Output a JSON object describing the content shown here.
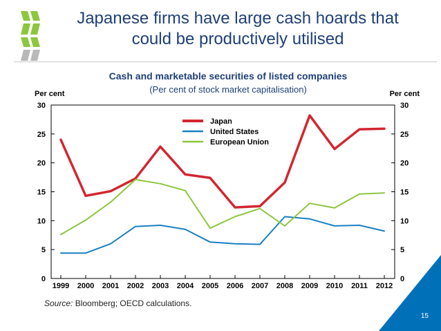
{
  "slide": {
    "title_line1": "Japanese firms have large cash hoards that",
    "title_line2": "could be productively utilised",
    "page_number": "15"
  },
  "source": {
    "label": "Source:",
    "text": "Bloomberg; OECD calculations."
  },
  "colors": {
    "title": "#1f3f76",
    "logo_green": "#8dc63f",
    "corner_blue": "#0071b9"
  },
  "chart_data": {
    "type": "line",
    "title": "Cash and marketable securities of listed companies",
    "subtitle": "(Per cent of stock market capitalisation)",
    "ylabel_left": "Per cent",
    "ylabel_right": "Per cent",
    "ylim": [
      0,
      30
    ],
    "yticks": [
      0,
      5,
      10,
      15,
      20,
      25,
      30
    ],
    "x": [
      "1999",
      "2000",
      "2001",
      "2002",
      "2003",
      "2004",
      "2005",
      "2006",
      "2007",
      "2008",
      "2009",
      "2010",
      "2011",
      "2012"
    ],
    "legend_position": "top-center",
    "grid": false,
    "series": [
      {
        "name": "Japan",
        "color": "#d22630",
        "width": 3.5,
        "values": [
          24.0,
          14.3,
          15.1,
          17.3,
          22.8,
          18.0,
          17.4,
          12.3,
          12.5,
          16.6,
          28.2,
          22.4,
          25.8,
          25.9
        ]
      },
      {
        "name": "United States",
        "color": "#1a7fc1",
        "width": 2,
        "values": [
          4.4,
          4.4,
          6.0,
          9.0,
          9.2,
          8.5,
          6.3,
          6.0,
          5.9,
          10.7,
          10.3,
          9.1,
          9.2,
          8.2
        ]
      },
      {
        "name": "European Union",
        "color": "#8dc63f",
        "width": 2,
        "values": [
          7.6,
          10.1,
          13.2,
          17.1,
          16.4,
          15.2,
          8.7,
          10.7,
          12.1,
          9.1,
          13.0,
          12.2,
          14.6,
          14.8
        ]
      }
    ]
  }
}
